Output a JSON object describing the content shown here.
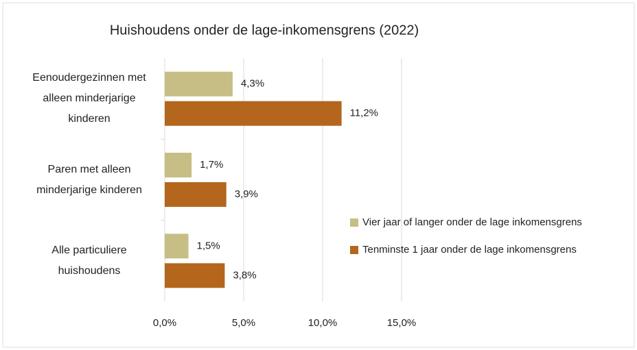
{
  "chart_data": {
    "type": "bar",
    "orientation": "horizontal",
    "title": "Huishoudens onder de lage-inkomensgrens (2022)",
    "categories": [
      "Eenoudergezinnen met alleen minderjarige kinderen",
      "Paren met alleen minderjarige kinderen",
      "Alle particuliere huishoudens"
    ],
    "series": [
      {
        "name": "Vier jaar of langer onder de lage inkomensgrens",
        "color": "#c6be84",
        "values": [
          4.3,
          1.7,
          1.5
        ],
        "value_labels": [
          "4,3%",
          "1,7%",
          "1,5%"
        ]
      },
      {
        "name": "Tenminste 1 jaar onder de lage inkomensgrens",
        "color": "#b3661c",
        "values": [
          11.2,
          3.9,
          3.8
        ],
        "value_labels": [
          "11,2%",
          "3,9%",
          "3,8%"
        ]
      }
    ],
    "xlim": [
      0,
      15
    ],
    "xticks": [
      {
        "value": 0,
        "label": "0,0%"
      },
      {
        "value": 5,
        "label": "5,0%"
      },
      {
        "value": 10,
        "label": "10,0%"
      },
      {
        "value": 15,
        "label": "15,0%"
      }
    ],
    "grid": true,
    "legend": "right"
  }
}
